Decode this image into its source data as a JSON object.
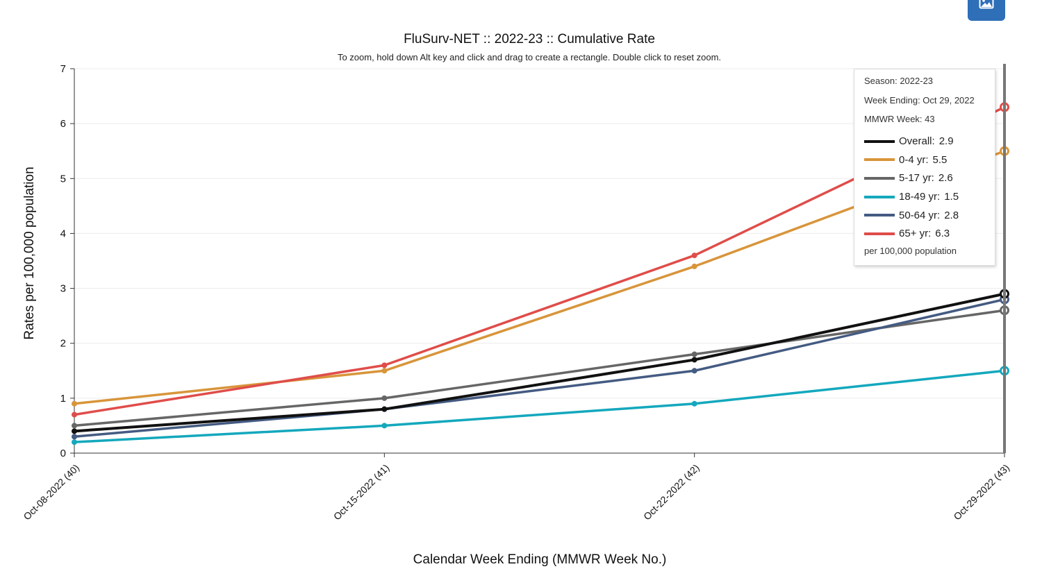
{
  "toolbar": {
    "export_icon": "image-icon"
  },
  "colors": {
    "overall": "#111111",
    "age_0_4": "#d8953a",
    "age_5_17": "#666666",
    "age_18_49": "#14a8bd",
    "age_50_64": "#445b82",
    "age_65_plus": "#df4d4a",
    "crosshair": "#777777"
  },
  "chart_data": {
    "type": "line",
    "title": "FluSurv-NET :: 2022-23 :: Cumulative Rate",
    "subtitle": "To zoom, hold down Alt key and click and drag to create a rectangle. Double click to reset zoom.",
    "xlabel": "Calendar Week Ending (MMWR Week No.)",
    "ylabel": "Rates per 100,000 population",
    "categories": [
      "Oct-08-2022 (40)",
      "Oct-15-2022 (41)",
      "Oct-22-2022 (42)",
      "Oct-29-2022 (43)"
    ],
    "ylim": [
      0,
      7
    ],
    "yticks": [
      0,
      1,
      2,
      3,
      4,
      5,
      6,
      7
    ],
    "grid": true,
    "series": [
      {
        "name": "0-4 yr",
        "key": "age_0_4",
        "values": [
          0.9,
          1.5,
          3.4,
          5.5
        ]
      },
      {
        "name": "5-17 yr",
        "key": "age_5_17",
        "values": [
          0.5,
          1.0,
          1.8,
          2.6
        ]
      },
      {
        "name": "18-49 yr",
        "key": "age_18_49",
        "values": [
          0.2,
          0.5,
          0.9,
          1.5
        ]
      },
      {
        "name": "50-64 yr",
        "key": "age_50_64",
        "values": [
          0.3,
          0.8,
          1.5,
          2.8
        ]
      },
      {
        "name": "65+ yr",
        "key": "age_65_plus",
        "values": [
          0.7,
          1.6,
          3.6,
          6.3
        ]
      },
      {
        "name": "Overall",
        "key": "overall",
        "values": [
          0.4,
          0.8,
          1.7,
          2.9
        ]
      }
    ]
  },
  "tooltip": {
    "season": "Season: 2022-23",
    "week_ending": "Week Ending: Oct 29, 2022",
    "mmwr_week": "MMWR Week: 43",
    "rows": [
      {
        "label": "Overall:",
        "value": "2.9",
        "key": "overall"
      },
      {
        "label": "0-4 yr:",
        "value": "5.5",
        "key": "age_0_4"
      },
      {
        "label": "5-17 yr:",
        "value": "2.6",
        "key": "age_5_17"
      },
      {
        "label": "18-49 yr:",
        "value": "1.5",
        "key": "age_18_49"
      },
      {
        "label": "50-64 yr:",
        "value": "2.8",
        "key": "age_50_64"
      },
      {
        "label": "65+ yr:",
        "value": "6.3",
        "key": "age_65_plus"
      }
    ],
    "note": "per 100,000 population"
  }
}
